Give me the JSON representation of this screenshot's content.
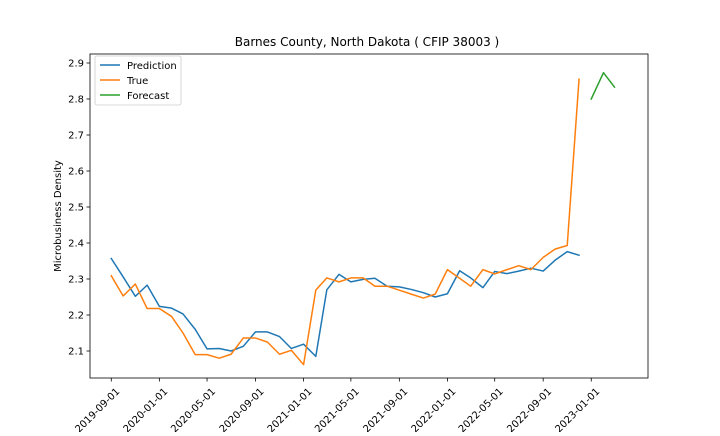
{
  "chart_data": {
    "type": "line",
    "title": "Barnes County, North Dakota ( CFIP 38003 )",
    "xlabel": "",
    "ylabel": "Microbusiness Density",
    "ylim": [
      2.025,
      2.925
    ],
    "xlim": [
      "2019-07-09",
      "2023-05-25"
    ],
    "x_tick_labels": [
      "2019-09-01",
      "2020-01-01",
      "2020-05-01",
      "2020-09-01",
      "2021-01-01",
      "2021-05-01",
      "2021-09-01",
      "2022-01-01",
      "2022-05-01",
      "2022-09-01",
      "2023-01-01"
    ],
    "y_tick_labels": [
      "2.1",
      "2.2",
      "2.3",
      "2.4",
      "2.5",
      "2.6",
      "2.7",
      "2.8",
      "2.9"
    ],
    "y_ticks": [
      2.1,
      2.2,
      2.3,
      2.4,
      2.5,
      2.6,
      2.7,
      2.8,
      2.9
    ],
    "grid": false,
    "legend_position": "top-left",
    "series": [
      {
        "name": "Prediction",
        "color": "#1f77b4",
        "x": [
          "2019-09-01",
          "2019-10-01",
          "2019-11-01",
          "2019-12-01",
          "2020-01-01",
          "2020-02-01",
          "2020-03-01",
          "2020-04-01",
          "2020-05-01",
          "2020-06-01",
          "2020-07-01",
          "2020-08-01",
          "2020-09-01",
          "2020-10-01",
          "2020-11-01",
          "2020-12-01",
          "2021-01-01",
          "2021-02-01",
          "2021-03-01",
          "2021-04-01",
          "2021-05-01",
          "2021-06-01",
          "2021-07-01",
          "2021-08-01",
          "2021-09-01",
          "2021-10-01",
          "2021-11-01",
          "2021-12-01",
          "2022-01-01",
          "2022-02-01",
          "2022-03-01",
          "2022-04-01",
          "2022-05-01",
          "2022-06-01",
          "2022-07-01",
          "2022-08-01",
          "2022-09-01",
          "2022-10-01",
          "2022-11-01",
          "2022-12-01"
        ],
        "values": [
          2.357,
          2.306,
          2.252,
          2.283,
          2.224,
          2.219,
          2.203,
          2.16,
          2.106,
          2.107,
          2.1,
          2.113,
          2.153,
          2.153,
          2.14,
          2.107,
          2.119,
          2.085,
          2.27,
          2.313,
          2.292,
          2.299,
          2.302,
          2.28,
          2.278,
          2.271,
          2.262,
          2.25,
          2.259,
          2.323,
          2.303,
          2.276,
          2.321,
          2.315,
          2.322,
          2.33,
          2.322,
          2.352,
          2.376,
          2.366
        ]
      },
      {
        "name": "True",
        "color": "#ff7f0e",
        "x": [
          "2019-09-01",
          "2019-10-01",
          "2019-11-01",
          "2019-12-01",
          "2020-01-01",
          "2020-02-01",
          "2020-03-01",
          "2020-04-01",
          "2020-05-01",
          "2020-06-01",
          "2020-07-01",
          "2020-08-01",
          "2020-09-01",
          "2020-10-01",
          "2020-11-01",
          "2020-12-01",
          "2021-01-01",
          "2021-02-01",
          "2021-03-01",
          "2021-04-01",
          "2021-05-01",
          "2021-06-01",
          "2021-07-01",
          "2021-08-01",
          "2021-09-01",
          "2021-10-01",
          "2021-11-01",
          "2021-12-01",
          "2022-01-01",
          "2022-02-01",
          "2022-03-01",
          "2022-04-01",
          "2022-05-01",
          "2022-06-01",
          "2022-07-01",
          "2022-08-01",
          "2022-09-01",
          "2022-10-01",
          "2022-11-01",
          "2022-12-01"
        ],
        "values": [
          2.309,
          2.253,
          2.286,
          2.218,
          2.218,
          2.196,
          2.15,
          2.09,
          2.09,
          2.08,
          2.091,
          2.136,
          2.136,
          2.125,
          2.091,
          2.102,
          2.062,
          2.269,
          2.303,
          2.292,
          2.303,
          2.303,
          2.28,
          2.28,
          2.269,
          2.258,
          2.247,
          2.258,
          2.326,
          2.302,
          2.28,
          2.326,
          2.314,
          2.326,
          2.337,
          2.326,
          2.36,
          2.383,
          2.393,
          2.855
        ]
      },
      {
        "name": "Forecast",
        "color": "#2ca02c",
        "x": [
          "2023-01-01",
          "2023-02-01",
          "2023-03-01"
        ],
        "values": [
          2.8,
          2.873,
          2.833
        ]
      }
    ]
  }
}
